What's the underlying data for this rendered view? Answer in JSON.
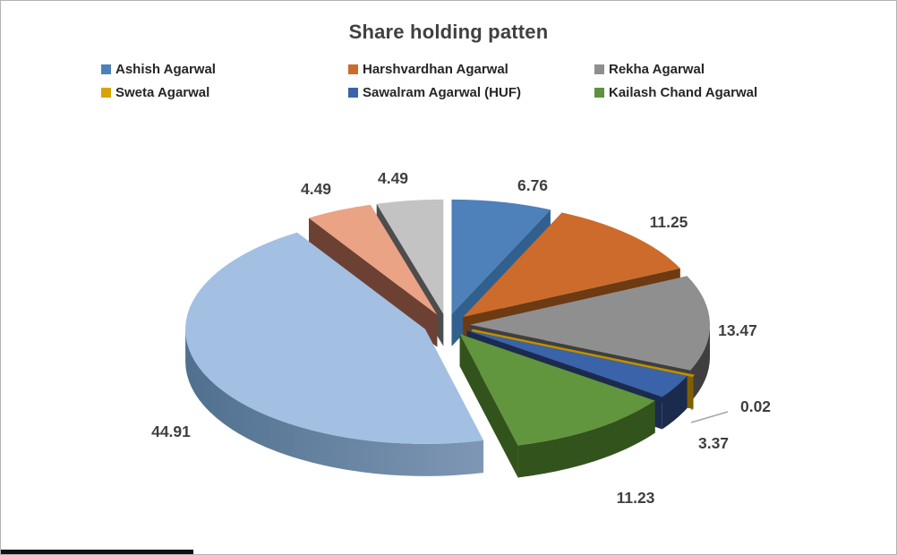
{
  "frame": {
    "bg": "#ffffff",
    "border_color": "#b3b3b3"
  },
  "title": {
    "text": "Share holding patten",
    "color": "#404040"
  },
  "legend": {
    "position": "top",
    "text_color": "#262626",
    "items": [
      {
        "label": "Ashish Agarwal",
        "color": "#4e80b9"
      },
      {
        "label": "Harshvardhan Agarwal",
        "color": "#cc6b2c"
      },
      {
        "label": "Rekha Agarwal",
        "color": "#8f8f8f"
      },
      {
        "label": "Sweta Agarwal",
        "color": "#d8a400"
      },
      {
        "label": "Sawalram Agarwal (HUF)",
        "color": "#3a63a9"
      },
      {
        "label": "Kailash Chand Agarwal",
        "color": "#5e9140"
      }
    ]
  },
  "chart_data": {
    "type": "pie",
    "effect": "3d-exploded",
    "title": "Share holding patten",
    "start_angle_deg": 0,
    "clockwise": true,
    "legend_position": "top",
    "data_labels": "outside",
    "label_color": "#3f3f3f",
    "leader_line_color": "#a6a6a6",
    "slices": [
      {
        "name": "Ashish Agarwal",
        "value": 6.76,
        "top": "#4e80b9",
        "side": "#31608e"
      },
      {
        "name": "Harshvardhan Agarwal",
        "value": 11.25,
        "top": "#cc6b2c",
        "side": "#6e3a12"
      },
      {
        "name": "Rekha Agarwal",
        "value": 13.47,
        "top": "#8f8f8f",
        "side": "#3f3f3f"
      },
      {
        "name": "Sweta Agarwal",
        "value": 0.02,
        "top": "#bf8f00",
        "side": "#7f5f00"
      },
      {
        "name": "Sawalram Agarwal (HUF)",
        "value": 3.37,
        "top": "#3a63a9",
        "side": "#1b2b4e"
      },
      {
        "name": "Kailash Chand Agarwal",
        "value": 11.23,
        "top": "#61953e",
        "side": "#33531d"
      },
      {
        "name": "",
        "value": 44.91,
        "top": "#a3c0e3",
        "side": "#50708f",
        "side2": "#7e97b4"
      },
      {
        "name": "",
        "value": 4.49,
        "top": "#eba385",
        "side": "#6c4134"
      },
      {
        "name": "",
        "value": 4.49,
        "top": "#c3c3c3",
        "side": "#4d4d4d"
      }
    ]
  }
}
